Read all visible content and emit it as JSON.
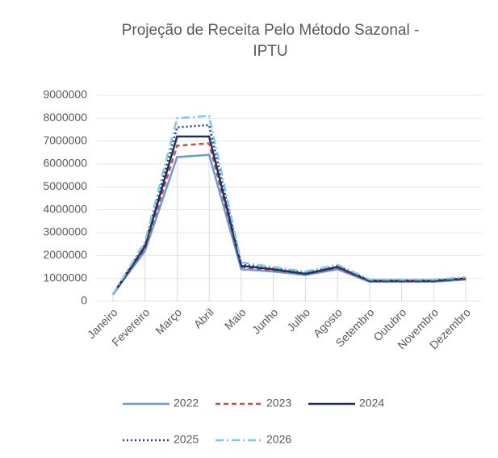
{
  "chart_data": {
    "type": "line",
    "title": [
      "Projeção de Receita Pelo Método Sazonal -",
      "IPTU"
    ],
    "categories": [
      "Janeiro",
      "Fevereiro",
      "Março",
      "Abril",
      "Maio",
      "Junho",
      "Julho",
      "Agosto",
      "Setembro",
      "Outubro",
      "Novembro",
      "Dezembro"
    ],
    "series": [
      {
        "name": "2022",
        "color": "#6a9bd1",
        "dash": "solid",
        "values": [
          300000,
          2200000,
          6300000,
          6400000,
          1400000,
          1300000,
          1150000,
          1400000,
          850000,
          850000,
          850000,
          950000
        ]
      },
      {
        "name": "2023",
        "color": "#c0504d",
        "dash": "dashed",
        "values": [
          300000,
          2300000,
          6800000,
          6900000,
          1500000,
          1350000,
          1200000,
          1450000,
          880000,
          880000,
          880000,
          970000
        ]
      },
      {
        "name": "2024",
        "color": "#1f2d5c",
        "dash": "solid",
        "values": [
          300000,
          2400000,
          7200000,
          7200000,
          1550000,
          1400000,
          1200000,
          1500000,
          900000,
          900000,
          900000,
          1000000
        ]
      },
      {
        "name": "2025",
        "color": "#2e3a87",
        "dash": "dotted",
        "values": [
          300000,
          2500000,
          7600000,
          7700000,
          1600000,
          1450000,
          1250000,
          1550000,
          920000,
          920000,
          920000,
          1020000
        ]
      },
      {
        "name": "2026",
        "color": "#7fc8e6",
        "dash": "dashdot",
        "values": [
          300000,
          2600000,
          8000000,
          8100000,
          1700000,
          1500000,
          1300000,
          1600000,
          950000,
          950000,
          950000,
          1050000
        ]
      }
    ],
    "ylim": [
      0,
      9000000
    ],
    "yticks": [
      0,
      1000000,
      2000000,
      3000000,
      4000000,
      5000000,
      6000000,
      7000000,
      8000000,
      9000000
    ],
    "grid": true,
    "legend": "bottom"
  }
}
